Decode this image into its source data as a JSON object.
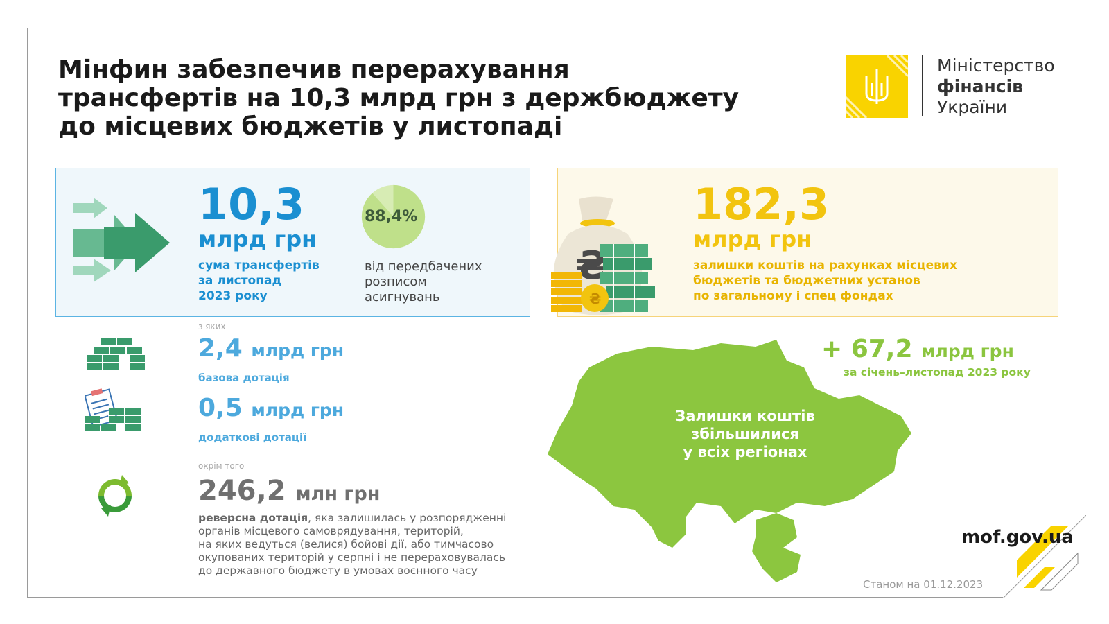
{
  "header": {
    "title_line1": "Мінфин забезпечив перерахування",
    "title_line2": "трансфертів на 10,3 млрд грн з держбюджету",
    "title_line3": "до місцевих бюджетів у листопаді"
  },
  "logo": {
    "line1": "Міністерство",
    "line2": "фінансів",
    "line3": "України",
    "emblem_icon": "trident-emblem-icon",
    "accent_color": "#f9d300"
  },
  "transfers": {
    "amount": "10,3",
    "unit": "млрд грн",
    "desc_line1": "сума трансфертів",
    "desc_line2": "за листопад",
    "desc_line3": "2023 року",
    "percent_label": "88,4%",
    "percent_value": 0.884,
    "percent_desc_line1": "від передбачених",
    "percent_desc_line2": "розписом",
    "percent_desc_line3": "асигнувань",
    "color": "#1b8fd1"
  },
  "balances": {
    "amount": "182,3",
    "unit": "млрд грн",
    "desc_line1": "залишки коштів на рахунках місцевих",
    "desc_line2": "бюджетів та бюджетних установ",
    "desc_line3": "по загальному і спец фондах",
    "color": "#f2c40f"
  },
  "breakdown": {
    "of_which_label": "з яких",
    "base": {
      "amount": "2,4",
      "unit": "млрд грн",
      "desc": "базова дотація",
      "icon": "money-stack-icon"
    },
    "additional": {
      "amount": "0,5",
      "unit": "млрд грн",
      "desc": "додаткові дотації",
      "icon": "clipboard-money-icon"
    },
    "besides_label": "окрім того",
    "reverse": {
      "amount": "246,2",
      "unit": "млн грн",
      "desc_bold": "реверсна дотація",
      "desc_rest1": ", яка залишилась у розпорядженні",
      "desc_line2": "органів місцевого самоврядування, територій,",
      "desc_line3": "на яких ведуться (велися) бойові дії, або тимчасово",
      "desc_line4": "окупованих територій у серпні і не перераховувалась",
      "desc_line5": "до державного бюджету в умовах воєнного часу",
      "icon": "recycle-arrows-icon"
    }
  },
  "map": {
    "text_line1": "Залишки коштів",
    "text_line2": "збільшилися",
    "text_line3": "у всіх регіонах",
    "increase_amount": "+ 67,2",
    "increase_unit": "млрд грн",
    "increase_desc": "за січень–листопад 2023 року",
    "fill_color": "#8cc63f"
  },
  "footer": {
    "site": "mof.gov.ua",
    "as_of": "Станом на 01.12.2023"
  }
}
